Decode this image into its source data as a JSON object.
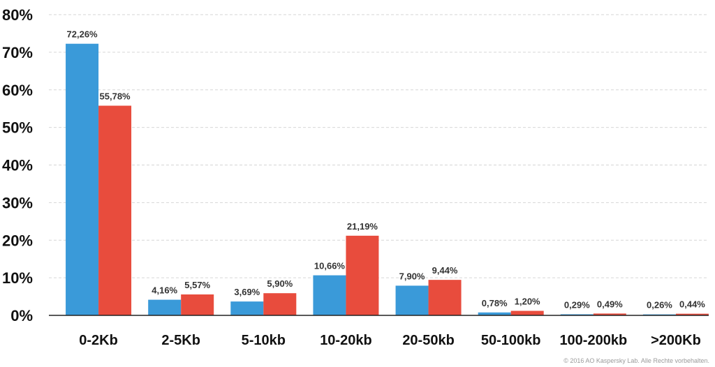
{
  "chart_data": {
    "type": "bar",
    "categories": [
      "0-2Kb",
      "2-5Kb",
      "5-10kb",
      "10-20kb",
      "20-50kb",
      "50-100kb",
      "100-200kb",
      ">200Kb"
    ],
    "series": [
      {
        "color": "#3a9ad9",
        "values": [
          72.26,
          4.16,
          3.69,
          10.66,
          7.9,
          0.78,
          0.29,
          0.26
        ],
        "labels": [
          "72,26%",
          "4,16%",
          "3,69%",
          "10,66%",
          "7,90%",
          "0,78%",
          "0,29%",
          "0,26%"
        ]
      },
      {
        "color": "#e84c3d",
        "values": [
          55.78,
          5.57,
          5.9,
          21.19,
          9.44,
          1.2,
          0.49,
          0.44
        ],
        "labels": [
          "55,78%",
          "5,57%",
          "5,90%",
          "21,19%",
          "9,44%",
          "1,20%",
          "0,49%",
          "0,44%"
        ]
      }
    ],
    "ylim": [
      0,
      80
    ],
    "yticks": [
      0,
      10,
      20,
      30,
      40,
      50,
      60,
      70,
      80
    ],
    "ytick_labels": [
      "0%",
      "10%",
      "20%",
      "30%",
      "40%",
      "50%",
      "60%",
      "70%",
      "80%"
    ],
    "grid": true,
    "title": "",
    "xlabel": "",
    "ylabel": ""
  },
  "footer": {
    "copyright": "© 2016 AO Kaspersky Lab. Alle Rechte vorbehalten."
  }
}
